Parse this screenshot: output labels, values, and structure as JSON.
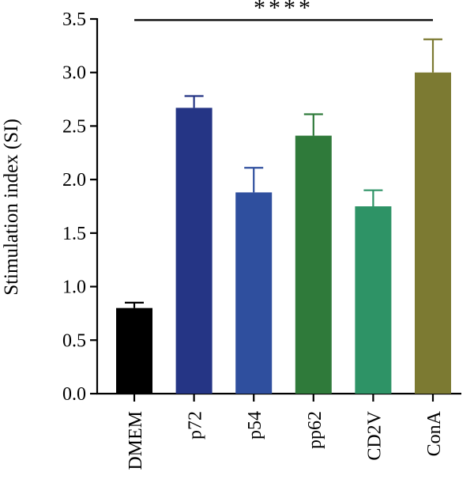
{
  "chart_data": {
    "type": "bar",
    "title": "",
    "xlabel": "",
    "ylabel": "Stimulation index (SI)",
    "ylim": [
      0,
      3.5
    ],
    "yticks": [
      "0.0",
      "0.5",
      "1.0",
      "1.5",
      "2.0",
      "2.5",
      "3.0",
      "3.5"
    ],
    "categories": [
      "DMEM",
      "p72",
      "p54",
      "pp62",
      "CD2V",
      "ConA"
    ],
    "values": [
      0.8,
      2.67,
      1.88,
      2.41,
      1.75,
      3.0
    ],
    "errors": [
      0.05,
      0.11,
      0.23,
      0.2,
      0.15,
      0.31
    ],
    "colors": [
      "#000000",
      "#253585",
      "#2f4f9e",
      "#2f7a3a",
      "#2e9366",
      "#7c7a32"
    ],
    "significance": {
      "label": "****",
      "from_category": "DMEM",
      "to_category": "ConA",
      "y": 3.49
    },
    "grid": false,
    "legend": "none"
  }
}
